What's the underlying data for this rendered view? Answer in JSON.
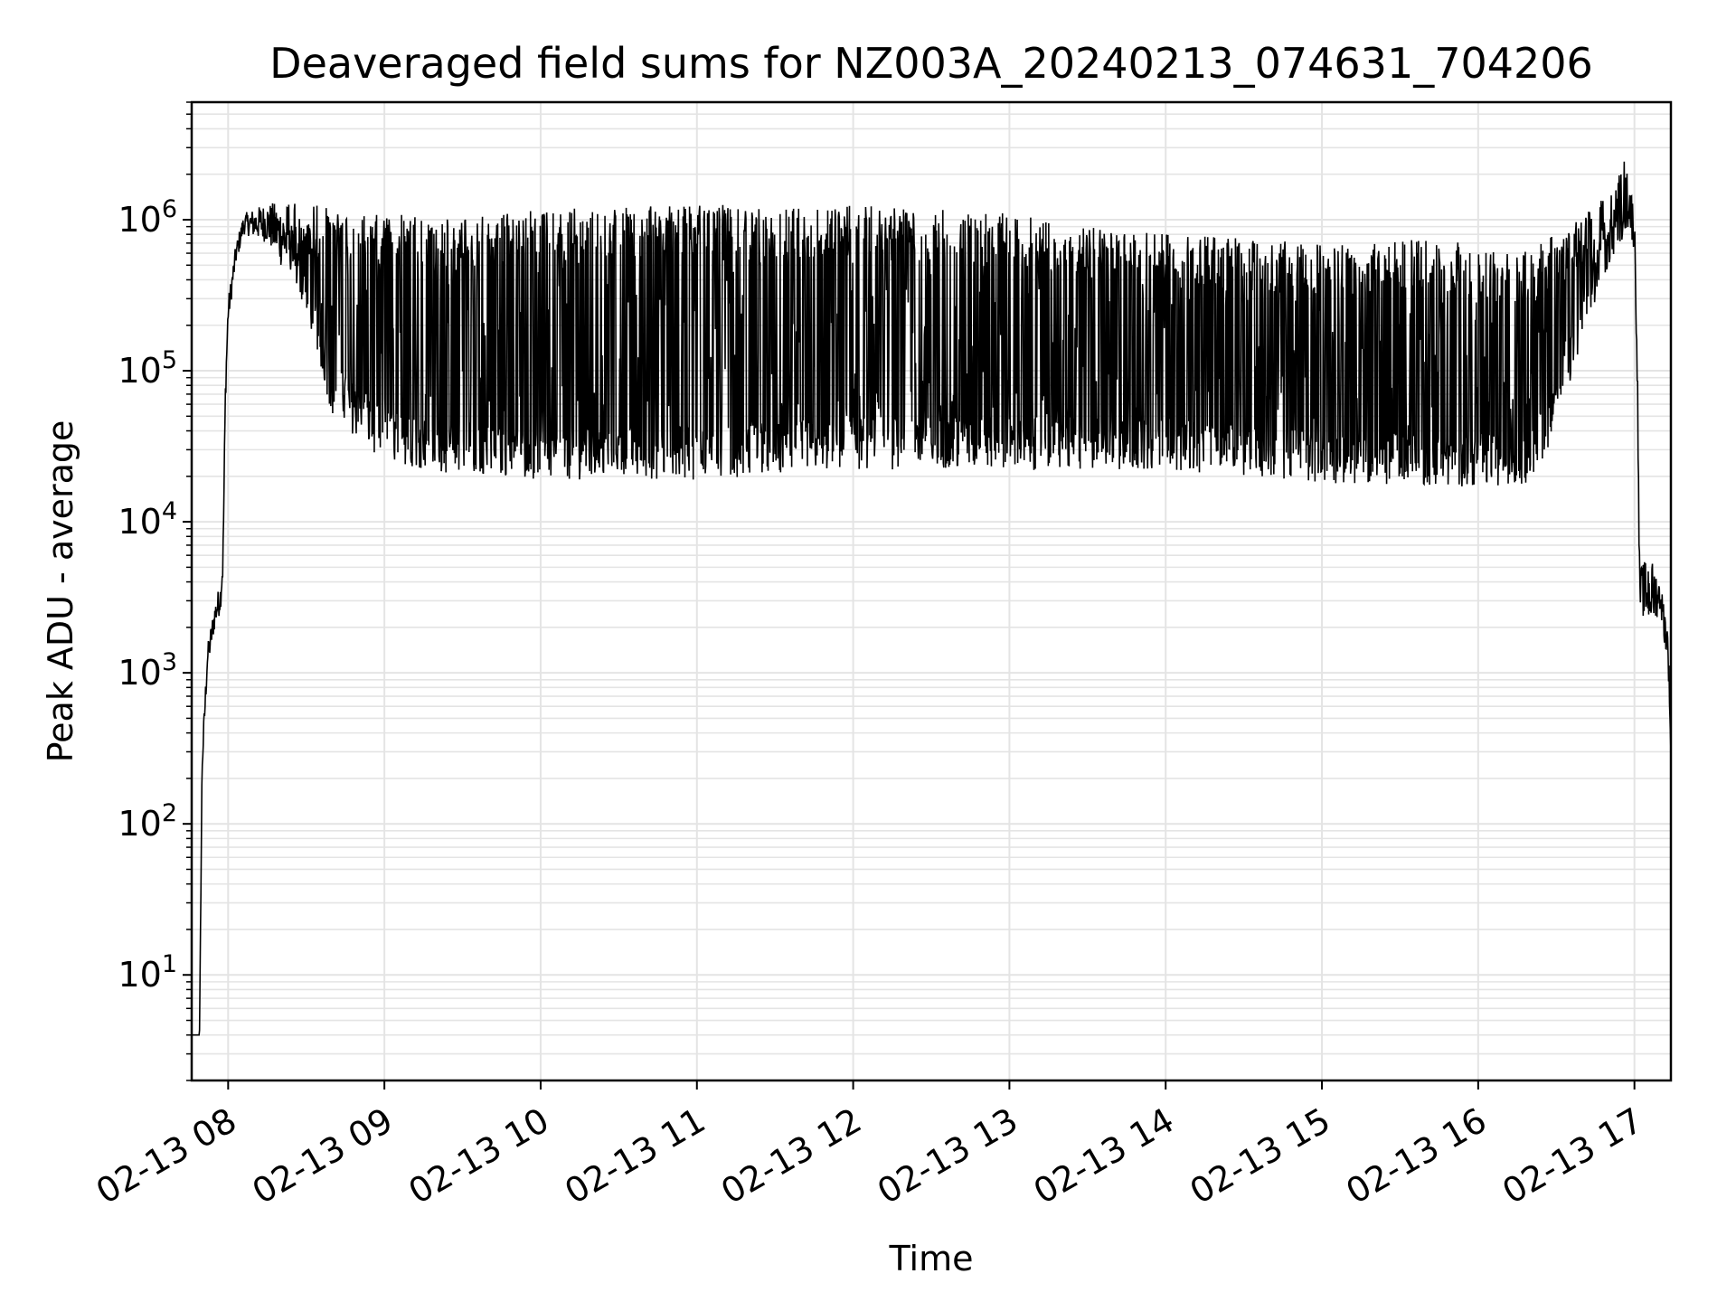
{
  "chart_data": {
    "type": "line",
    "title": "Deaveraged field sums for NZ003A_20240213_074631_704206",
    "xlabel": "Time",
    "ylabel": "Peak ADU - average",
    "yscale": "log",
    "ylim": [
      2,
      6000000
    ],
    "xlim": [
      "2024-02-13 07:46",
      "2024-02-13 17:14"
    ],
    "grid": true,
    "x_tick_labels": [
      "02-13 08",
      "02-13 09",
      "02-13 10",
      "02-13 11",
      "02-13 12",
      "02-13 13",
      "02-13 14",
      "02-13 15",
      "02-13 16",
      "02-13 17"
    ],
    "x_ticks": [
      "2024-02-13 08:00",
      "2024-02-13 09:00",
      "2024-02-13 10:00",
      "2024-02-13 11:00",
      "2024-02-13 12:00",
      "2024-02-13 13:00",
      "2024-02-13 14:00",
      "2024-02-13 15:00",
      "2024-02-13 16:00",
      "2024-02-13 17:00"
    ],
    "y_ticks": [
      {
        "value": 10,
        "base": "10",
        "exp": "1"
      },
      {
        "value": 100,
        "base": "10",
        "exp": "2"
      },
      {
        "value": 1000,
        "base": "10",
        "exp": "3"
      },
      {
        "value": 10000,
        "base": "10",
        "exp": "4"
      },
      {
        "value": 100000,
        "base": "10",
        "exp": "5"
      },
      {
        "value": 1000000,
        "base": "10",
        "exp": "6"
      }
    ],
    "series_color": "#000000",
    "series": [
      {
        "upper": [
          [
            "2024-02-13 07:46",
            4
          ],
          [
            "2024-02-13 07:49",
            4
          ],
          [
            "2024-02-13 07:50",
            300
          ],
          [
            "2024-02-13 07:52",
            1500
          ],
          [
            "2024-02-13 07:55",
            3000
          ],
          [
            "2024-02-13 07:57",
            4000
          ],
          [
            "2024-02-13 07:58",
            7000
          ],
          [
            "2024-02-13 07:59",
            100000
          ],
          [
            "2024-02-13 08:00",
            300000
          ],
          [
            "2024-02-13 08:03",
            700000
          ],
          [
            "2024-02-13 08:06",
            1100000
          ],
          [
            "2024-02-13 08:15",
            1300000
          ],
          [
            "2024-02-13 08:30",
            1300000
          ],
          [
            "2024-02-13 09:00",
            1100000
          ],
          [
            "2024-02-13 09:30",
            1000000
          ],
          [
            "2024-02-13 10:00",
            1200000
          ],
          [
            "2024-02-13 11:00",
            1250000
          ],
          [
            "2024-02-13 12:00",
            1250000
          ],
          [
            "2024-02-13 13:00",
            1100000
          ],
          [
            "2024-02-13 13:30",
            900000
          ],
          [
            "2024-02-13 14:00",
            800000
          ],
          [
            "2024-02-13 15:00",
            700000
          ],
          [
            "2024-02-13 15:45",
            750000
          ],
          [
            "2024-02-13 16:15",
            600000
          ],
          [
            "2024-02-13 16:30",
            800000
          ],
          [
            "2024-02-13 16:50",
            1500000
          ],
          [
            "2024-02-13 16:56",
            3100000
          ],
          [
            "2024-02-13 17:00",
            1200000
          ],
          [
            "2024-02-13 17:01",
            200000
          ],
          [
            "2024-02-13 17:02",
            5000
          ],
          [
            "2024-02-13 17:06",
            6000
          ],
          [
            "2024-02-13 17:10",
            4000
          ],
          [
            "2024-02-13 17:13",
            2000
          ],
          [
            "2024-02-13 17:14",
            300
          ]
        ],
        "lower": [
          [
            "2024-02-13 07:46",
            4
          ],
          [
            "2024-02-13 07:49",
            4
          ],
          [
            "2024-02-13 07:50",
            200
          ],
          [
            "2024-02-13 07:52",
            1000
          ],
          [
            "2024-02-13 07:55",
            2000
          ],
          [
            "2024-02-13 07:57",
            2500
          ],
          [
            "2024-02-13 07:58",
            4000
          ],
          [
            "2024-02-13 07:59",
            60000
          ],
          [
            "2024-02-13 08:00",
            200000
          ],
          [
            "2024-02-13 08:03",
            500000
          ],
          [
            "2024-02-13 08:06",
            800000
          ],
          [
            "2024-02-13 08:15",
            700000
          ],
          [
            "2024-02-13 08:30",
            250000
          ],
          [
            "2024-02-13 08:40",
            50000
          ],
          [
            "2024-02-13 09:00",
            25000
          ],
          [
            "2024-02-13 09:30",
            20000
          ],
          [
            "2024-02-13 10:00",
            19000
          ],
          [
            "2024-02-13 11:00",
            19000
          ],
          [
            "2024-02-13 12:00",
            22000
          ],
          [
            "2024-02-13 13:00",
            22000
          ],
          [
            "2024-02-13 14:00",
            22000
          ],
          [
            "2024-02-13 15:00",
            18000
          ],
          [
            "2024-02-13 16:00",
            17000
          ],
          [
            "2024-02-13 16:20",
            18000
          ],
          [
            "2024-02-13 16:30",
            40000
          ],
          [
            "2024-02-13 16:40",
            150000
          ],
          [
            "2024-02-13 16:50",
            500000
          ],
          [
            "2024-02-13 16:58",
            900000
          ],
          [
            "2024-02-13 17:00",
            600000
          ],
          [
            "2024-02-13 17:01",
            100000
          ],
          [
            "2024-02-13 17:02",
            2500
          ],
          [
            "2024-02-13 17:06",
            2000
          ],
          [
            "2024-02-13 17:10",
            2500
          ],
          [
            "2024-02-13 17:13",
            1000
          ],
          [
            "2024-02-13 17:14",
            300
          ]
        ]
      }
    ]
  }
}
